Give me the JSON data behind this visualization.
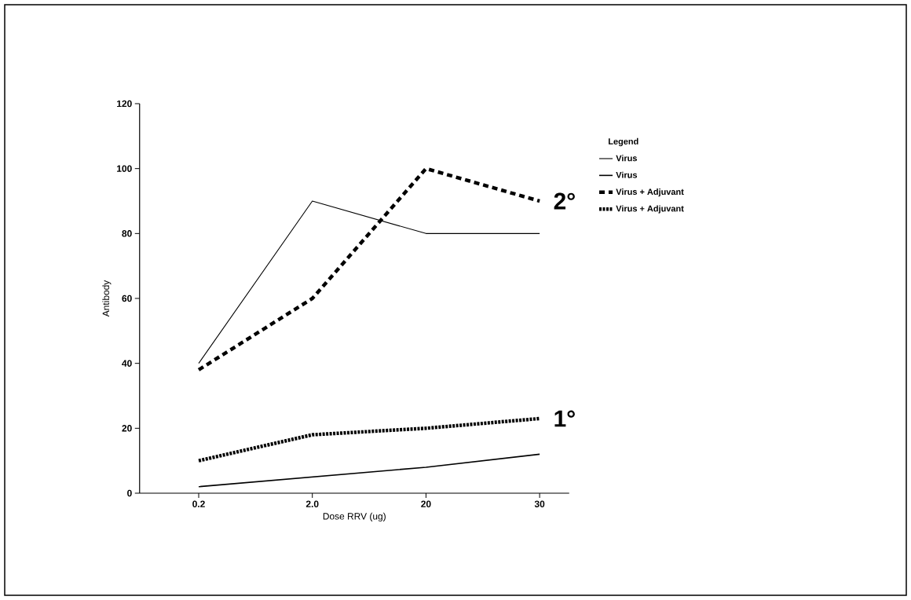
{
  "chart_data": {
    "type": "line",
    "xlabel": "Dose RRV (ug)",
    "ylabel": "Antibody",
    "legend_title": "Legend",
    "categories": [
      "0.2",
      "2.0",
      "20",
      "30"
    ],
    "series": [
      {
        "name": "Virus",
        "color": "#000000",
        "line_style": "solid",
        "values": [
          40,
          90,
          80,
          80
        ]
      },
      {
        "name": "Virus",
        "color": "#000000",
        "line_style": "solid",
        "values": [
          2,
          5,
          8,
          12
        ]
      },
      {
        "name": "Virus + Adjuvant",
        "color": "#000000",
        "line_style": "dashed",
        "values": [
          38,
          60,
          100,
          90
        ]
      },
      {
        "name": "Virus + Adjuvant",
        "color": "#000000",
        "line_style": "dotted",
        "values": [
          10,
          18,
          20,
          23
        ]
      }
    ],
    "ylim": [
      0,
      120
    ],
    "yticks": [
      0,
      20,
      40,
      60,
      80,
      100,
      120
    ],
    "grid": false,
    "legend": "right",
    "marker": "none",
    "annotations": [
      {
        "text": "2°",
        "x": "30",
        "y": 90
      },
      {
        "text": "1°",
        "x": "30",
        "y": 23
      }
    ]
  }
}
